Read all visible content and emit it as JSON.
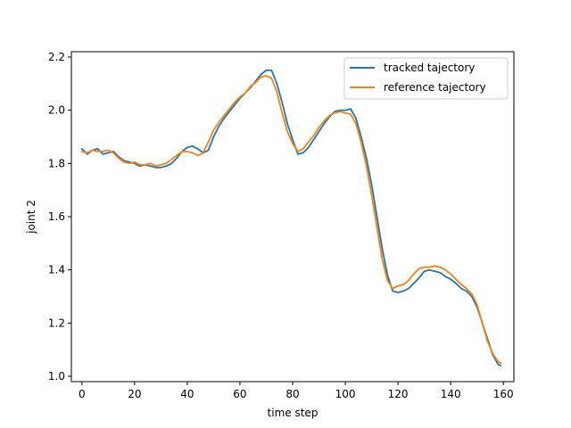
{
  "chart_data": {
    "type": "line",
    "title": "",
    "xlabel": "time step",
    "ylabel": "joint 2",
    "xlim": [
      -4,
      164
    ],
    "ylim": [
      0.98,
      2.22
    ],
    "xticks": [
      0,
      20,
      40,
      60,
      80,
      100,
      120,
      140,
      160
    ],
    "yticks": [
      1.0,
      1.2,
      1.4,
      1.6,
      1.8,
      2.0,
      2.2
    ],
    "xtick_labels": [
      "0",
      "20",
      "40",
      "60",
      "80",
      "100",
      "120",
      "140",
      "160"
    ],
    "ytick_labels": [
      "1.0",
      "1.2",
      "1.4",
      "1.6",
      "1.8",
      "2.0",
      "2.2"
    ],
    "grid": false,
    "legend_position": "top-right",
    "series": [
      {
        "name": "tracked tajectory",
        "color": "#1f77b4",
        "x": [
          0,
          2,
          4,
          6,
          8,
          10,
          12,
          14,
          16,
          18,
          20,
          22,
          24,
          26,
          28,
          30,
          32,
          34,
          36,
          38,
          40,
          42,
          44,
          46,
          48,
          50,
          52,
          54,
          56,
          58,
          60,
          62,
          64,
          66,
          68,
          70,
          72,
          74,
          76,
          78,
          80,
          82,
          84,
          86,
          88,
          90,
          92,
          94,
          96,
          98,
          100,
          102,
          104,
          106,
          108,
          110,
          112,
          114,
          116,
          118,
          120,
          122,
          124,
          126,
          128,
          130,
          132,
          134,
          136,
          138,
          140,
          142,
          144,
          146,
          148,
          150,
          152,
          154,
          156,
          158,
          159
        ],
        "y": [
          1.855,
          1.835,
          1.85,
          1.855,
          1.835,
          1.84,
          1.845,
          1.825,
          1.81,
          1.805,
          1.8,
          1.79,
          1.795,
          1.79,
          1.785,
          1.785,
          1.79,
          1.8,
          1.82,
          1.845,
          1.86,
          1.865,
          1.855,
          1.84,
          1.85,
          1.9,
          1.94,
          1.97,
          1.995,
          2.02,
          2.045,
          2.065,
          2.085,
          2.11,
          2.135,
          2.15,
          2.15,
          2.1,
          2.03,
          1.95,
          1.89,
          1.835,
          1.84,
          1.86,
          1.89,
          1.92,
          1.95,
          1.975,
          1.995,
          2.0,
          2.0,
          2.005,
          1.97,
          1.9,
          1.82,
          1.72,
          1.6,
          1.48,
          1.38,
          1.32,
          1.315,
          1.32,
          1.33,
          1.35,
          1.37,
          1.395,
          1.4,
          1.395,
          1.39,
          1.375,
          1.365,
          1.35,
          1.33,
          1.32,
          1.3,
          1.26,
          1.2,
          1.14,
          1.08,
          1.045,
          1.04
        ]
      },
      {
        "name": "reference tajectory",
        "color": "#ff7f0e",
        "x": [
          0,
          2,
          4,
          6,
          8,
          10,
          12,
          14,
          16,
          18,
          20,
          22,
          24,
          26,
          28,
          30,
          32,
          34,
          36,
          38,
          40,
          42,
          44,
          46,
          48,
          50,
          52,
          54,
          56,
          58,
          60,
          62,
          64,
          66,
          68,
          70,
          72,
          74,
          76,
          78,
          80,
          82,
          84,
          86,
          88,
          90,
          92,
          94,
          96,
          98,
          100,
          102,
          104,
          106,
          108,
          110,
          112,
          114,
          116,
          118,
          120,
          122,
          124,
          126,
          128,
          130,
          132,
          134,
          136,
          138,
          140,
          142,
          144,
          146,
          148,
          150,
          152,
          154,
          156,
          158,
          159
        ],
        "y": [
          1.845,
          1.84,
          1.85,
          1.845,
          1.845,
          1.85,
          1.84,
          1.82,
          1.805,
          1.8,
          1.805,
          1.795,
          1.795,
          1.8,
          1.79,
          1.795,
          1.8,
          1.815,
          1.83,
          1.845,
          1.845,
          1.84,
          1.83,
          1.84,
          1.88,
          1.925,
          1.955,
          1.98,
          2.005,
          2.03,
          2.05,
          2.065,
          2.09,
          2.105,
          2.125,
          2.13,
          2.12,
          2.07,
          1.99,
          1.92,
          1.875,
          1.845,
          1.855,
          1.88,
          1.905,
          1.935,
          1.96,
          1.98,
          1.99,
          1.995,
          1.99,
          1.985,
          1.95,
          1.88,
          1.79,
          1.68,
          1.56,
          1.44,
          1.36,
          1.33,
          1.34,
          1.345,
          1.36,
          1.385,
          1.405,
          1.41,
          1.41,
          1.415,
          1.41,
          1.4,
          1.385,
          1.365,
          1.345,
          1.33,
          1.31,
          1.27,
          1.2,
          1.13,
          1.085,
          1.055,
          1.05
        ]
      }
    ]
  }
}
